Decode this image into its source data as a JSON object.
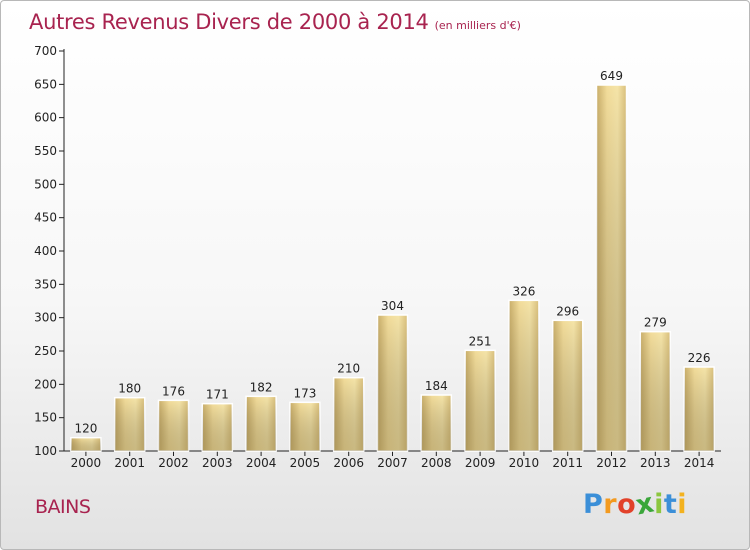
{
  "chart_data": {
    "type": "bar",
    "title": "Autres Revenus Divers de 2000 à 2014",
    "unit_note": "(en milliers d'€)",
    "categories": [
      "2000",
      "2001",
      "2002",
      "2003",
      "2004",
      "2005",
      "2006",
      "2007",
      "2008",
      "2009",
      "2010",
      "2011",
      "2012",
      "2013",
      "2014"
    ],
    "values": [
      120,
      180,
      176,
      171,
      182,
      173,
      210,
      304,
      184,
      251,
      326,
      296,
      649,
      279,
      226
    ],
    "y_ticks": [
      100,
      150,
      200,
      250,
      300,
      350,
      400,
      450,
      500,
      550,
      600,
      650,
      700
    ],
    "ylim": [
      100,
      700
    ],
    "grid": false,
    "data_labels": true
  },
  "footer": {
    "town": "BAINS",
    "logo": {
      "text": "Proxiti",
      "letters": [
        "P",
        "r",
        "o",
        "x",
        "i",
        "t",
        "i"
      ],
      "colors": [
        "#3b8fd8",
        "#f39a1f",
        "#e2422a",
        "#3aa63a",
        "#8cc63f",
        "#3b8fd8",
        "#f3b21f"
      ]
    }
  },
  "colors": {
    "accent": "#a8234f",
    "bar_light": "#f4e3a3",
    "bar_dark": "#c3a65e",
    "axis": "#222222"
  }
}
